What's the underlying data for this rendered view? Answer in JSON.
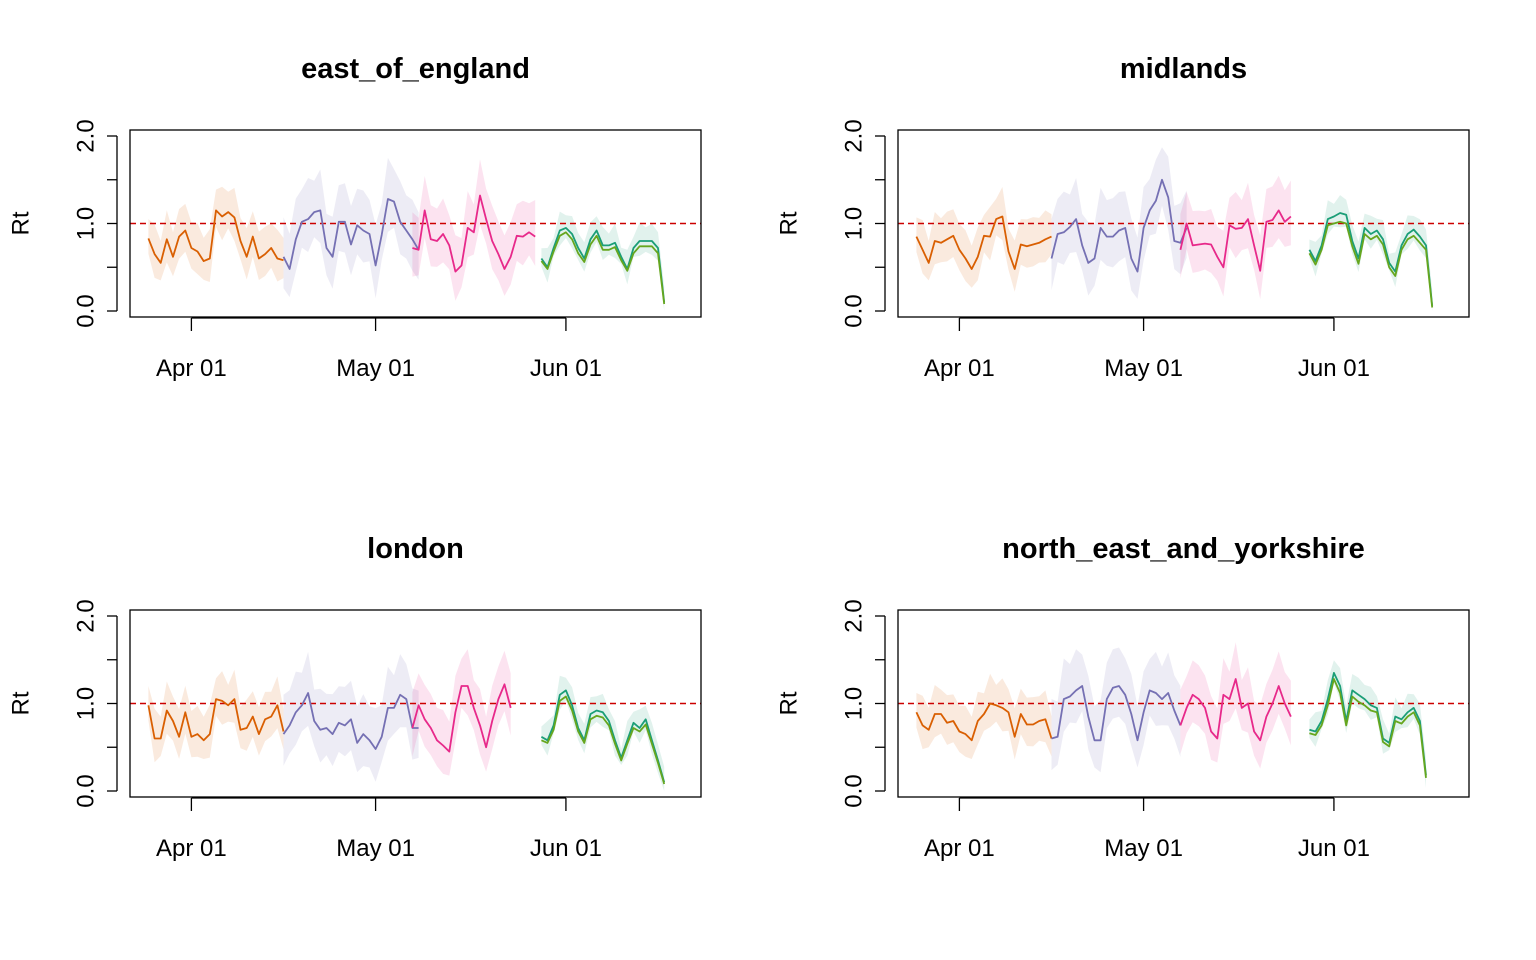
{
  "chart_data": [
    {
      "type": "line",
      "title": "east_of_england",
      "ylabel": "Rt",
      "xlabel": "",
      "ylim": [
        0,
        2
      ],
      "yticks": [
        "0.0",
        "1.0",
        "2.0"
      ],
      "xlim": [
        "2020-03-22",
        "2020-06-23"
      ],
      "xticks": [
        {
          "date": "2020-04-01",
          "label": "Apr 01"
        },
        {
          "date": "2020-05-01",
          "label": "May 01"
        },
        {
          "date": "2020-06-01",
          "label": "Jun 01"
        }
      ],
      "reference_line": {
        "y": 1.0,
        "color": "#cc0000",
        "style": "dashed"
      },
      "grid": false,
      "series": [
        {
          "color": "#d95f02",
          "start": "2020-03-25",
          "values": [
            0.83,
            0.65,
            0.55,
            0.82,
            0.62,
            0.85,
            0.92,
            0.72,
            0.68,
            0.57,
            0.6,
            1.15,
            1.08,
            1.13,
            1.07,
            0.8,
            0.62,
            0.85,
            0.6,
            0.65,
            0.72,
            0.6,
            0.58
          ]
        },
        {
          "color": "#7570b3",
          "start": "2020-04-16",
          "values": [
            0.62,
            0.48,
            0.82,
            1.02,
            1.05,
            1.13,
            1.15,
            0.72,
            0.62,
            1.02,
            1.02,
            0.76,
            0.98,
            0.92,
            0.88,
            0.52,
            0.87,
            1.28,
            1.25,
            1.02,
            0.92,
            0.82,
            0.7
          ]
        },
        {
          "color": "#e7298a",
          "start": "2020-05-07",
          "values": [
            0.72,
            0.7,
            1.15,
            0.82,
            0.8,
            0.88,
            0.75,
            0.45,
            0.52,
            0.95,
            0.9,
            1.32,
            1.05,
            0.8,
            0.65,
            0.48,
            0.62,
            0.86,
            0.85,
            0.9,
            0.85
          ]
        },
        {
          "color": "#1b9e77",
          "start": "2020-05-28",
          "values": [
            0.6,
            0.5,
            0.72,
            0.92,
            0.95,
            0.88,
            0.72,
            0.6,
            0.82,
            0.92,
            0.75,
            0.75,
            0.78,
            0.62,
            0.48,
            0.72,
            0.8,
            0.8,
            0.8,
            0.72,
            0.1
          ]
        },
        {
          "color": "#66a61e",
          "start": "2020-05-28",
          "values": [
            0.57,
            0.48,
            0.68,
            0.86,
            0.9,
            0.82,
            0.66,
            0.56,
            0.76,
            0.86,
            0.7,
            0.7,
            0.73,
            0.58,
            0.46,
            0.66,
            0.74,
            0.74,
            0.74,
            0.66,
            0.08
          ]
        }
      ]
    },
    {
      "type": "line",
      "title": "midlands",
      "ylabel": "Rt",
      "xlabel": "",
      "ylim": [
        0,
        2
      ],
      "yticks": [
        "0.0",
        "1.0",
        "2.0"
      ],
      "xlim": [
        "2020-03-22",
        "2020-06-23"
      ],
      "xticks": [
        {
          "date": "2020-04-01",
          "label": "Apr 01"
        },
        {
          "date": "2020-05-01",
          "label": "May 01"
        },
        {
          "date": "2020-06-01",
          "label": "Jun 01"
        }
      ],
      "reference_line": {
        "y": 1.0,
        "color": "#cc0000",
        "style": "dashed"
      },
      "grid": false,
      "series": [
        {
          "color": "#d95f02",
          "start": "2020-03-25",
          "values": [
            0.85,
            0.7,
            0.55,
            0.8,
            0.78,
            0.82,
            0.86,
            0.7,
            0.6,
            0.48,
            0.62,
            0.86,
            0.85,
            1.05,
            1.08,
            0.68,
            0.48,
            0.76,
            0.74,
            0.76,
            0.78,
            0.82,
            0.85
          ]
        },
        {
          "color": "#7570b3",
          "start": "2020-04-16",
          "values": [
            0.6,
            0.88,
            0.9,
            0.96,
            1.05,
            0.75,
            0.55,
            0.6,
            0.95,
            0.85,
            0.85,
            0.92,
            0.95,
            0.6,
            0.45,
            0.95,
            1.15,
            1.26,
            1.5,
            1.3,
            0.8,
            0.78,
            0.95
          ]
        },
        {
          "color": "#e7298a",
          "start": "2020-05-07",
          "values": [
            0.7,
            1.0,
            0.75,
            0.76,
            0.77,
            0.76,
            0.62,
            0.5,
            0.98,
            0.94,
            0.95,
            1.05,
            0.75,
            0.46,
            1.02,
            1.04,
            1.15,
            1.02,
            1.08
          ]
        },
        {
          "color": "#1b9e77",
          "start": "2020-05-28",
          "values": [
            0.7,
            0.57,
            0.75,
            1.05,
            1.08,
            1.12,
            1.1,
            0.8,
            0.6,
            0.95,
            0.88,
            0.92,
            0.82,
            0.55,
            0.45,
            0.75,
            0.88,
            0.93,
            0.85,
            0.75,
            0.06
          ]
        },
        {
          "color": "#66a61e",
          "start": "2020-05-28",
          "values": [
            0.66,
            0.53,
            0.7,
            0.98,
            1.0,
            1.02,
            1.0,
            0.74,
            0.54,
            0.88,
            0.82,
            0.86,
            0.76,
            0.5,
            0.4,
            0.7,
            0.82,
            0.86,
            0.78,
            0.7,
            0.04
          ]
        }
      ]
    },
    {
      "type": "line",
      "title": "london",
      "ylabel": "Rt",
      "xlabel": "",
      "ylim": [
        0,
        2
      ],
      "yticks": [
        "0.0",
        "1.0",
        "2.0"
      ],
      "xlim": [
        "2020-03-22",
        "2020-06-23"
      ],
      "xticks": [
        {
          "date": "2020-04-01",
          "label": "Apr 01"
        },
        {
          "date": "2020-05-01",
          "label": "May 01"
        },
        {
          "date": "2020-06-01",
          "label": "Jun 01"
        }
      ],
      "reference_line": {
        "y": 1.0,
        "color": "#cc0000",
        "style": "dashed"
      },
      "grid": false,
      "series": [
        {
          "color": "#d95f02",
          "start": "2020-03-25",
          "values": [
            0.98,
            0.6,
            0.6,
            0.92,
            0.8,
            0.62,
            0.9,
            0.62,
            0.65,
            0.58,
            0.65,
            1.05,
            1.03,
            0.98,
            1.05,
            0.7,
            0.72,
            0.85,
            0.65,
            0.82,
            0.85,
            0.98,
            0.68
          ]
        },
        {
          "color": "#7570b3",
          "start": "2020-04-16",
          "values": [
            0.65,
            0.75,
            0.9,
            0.98,
            1.12,
            0.8,
            0.7,
            0.72,
            0.65,
            0.78,
            0.75,
            0.82,
            0.55,
            0.65,
            0.58,
            0.48,
            0.62,
            0.95,
            0.95,
            1.1,
            1.05,
            0.72,
            0.72
          ]
        },
        {
          "color": "#e7298a",
          "start": "2020-05-07",
          "values": [
            0.72,
            0.98,
            0.82,
            0.72,
            0.58,
            0.52,
            0.45,
            0.9,
            1.2,
            1.2,
            0.95,
            0.75,
            0.5,
            0.8,
            1.05,
            1.22,
            0.95
          ]
        },
        {
          "color": "#1b9e77",
          "start": "2020-05-28",
          "values": [
            0.62,
            0.58,
            0.75,
            1.1,
            1.15,
            0.98,
            0.72,
            0.58,
            0.88,
            0.92,
            0.9,
            0.8,
            0.58,
            0.38,
            0.58,
            0.78,
            0.72,
            0.82,
            0.58,
            0.35,
            0.1
          ]
        },
        {
          "color": "#66a61e",
          "start": "2020-05-28",
          "values": [
            0.58,
            0.55,
            0.7,
            1.03,
            1.08,
            0.92,
            0.68,
            0.55,
            0.82,
            0.86,
            0.84,
            0.75,
            0.54,
            0.35,
            0.54,
            0.72,
            0.68,
            0.76,
            0.54,
            0.32,
            0.08
          ]
        }
      ]
    },
    {
      "type": "line",
      "title": "north_east_and_yorkshire",
      "ylabel": "Rt",
      "xlabel": "",
      "ylim": [
        0,
        2
      ],
      "yticks": [
        "0.0",
        "1.0",
        "2.0"
      ],
      "xlim": [
        "2020-03-22",
        "2020-06-23"
      ],
      "xticks": [
        {
          "date": "2020-04-01",
          "label": "Apr 01"
        },
        {
          "date": "2020-05-01",
          "label": "May 01"
        },
        {
          "date": "2020-06-01",
          "label": "Jun 01"
        }
      ],
      "reference_line": {
        "y": 1.0,
        "color": "#cc0000",
        "style": "dashed"
      },
      "grid": false,
      "series": [
        {
          "color": "#d95f02",
          "start": "2020-03-25",
          "values": [
            0.9,
            0.75,
            0.7,
            0.88,
            0.88,
            0.78,
            0.8,
            0.68,
            0.65,
            0.58,
            0.8,
            0.88,
            1.0,
            0.98,
            0.95,
            0.9,
            0.62,
            0.88,
            0.76,
            0.76,
            0.8,
            0.82,
            0.6
          ]
        },
        {
          "color": "#7570b3",
          "start": "2020-04-16",
          "values": [
            0.6,
            0.62,
            1.05,
            1.08,
            1.15,
            1.2,
            0.85,
            0.58,
            0.58,
            1.05,
            1.18,
            1.2,
            1.1,
            0.88,
            0.58,
            0.9,
            1.15,
            1.12,
            1.05,
            1.12,
            0.92,
            0.75
          ]
        },
        {
          "color": "#e7298a",
          "start": "2020-05-07",
          "values": [
            0.75,
            0.95,
            1.1,
            1.05,
            0.95,
            0.68,
            0.6,
            1.1,
            1.05,
            1.28,
            0.95,
            1.0,
            0.68,
            0.58,
            0.85,
            1.0,
            1.2,
            1.0,
            0.85
          ]
        },
        {
          "color": "#1b9e77",
          "start": "2020-05-28",
          "values": [
            0.7,
            0.68,
            0.8,
            1.05,
            1.35,
            1.2,
            0.8,
            1.15,
            1.1,
            1.05,
            0.98,
            0.95,
            0.6,
            0.55,
            0.85,
            0.82,
            0.9,
            0.95,
            0.8,
            0.18
          ]
        },
        {
          "color": "#66a61e",
          "start": "2020-05-28",
          "values": [
            0.66,
            0.64,
            0.75,
            0.98,
            1.28,
            1.12,
            0.75,
            1.08,
            1.02,
            0.98,
            0.92,
            0.9,
            0.56,
            0.51,
            0.8,
            0.77,
            0.85,
            0.9,
            0.75,
            0.15
          ]
        }
      ]
    }
  ]
}
